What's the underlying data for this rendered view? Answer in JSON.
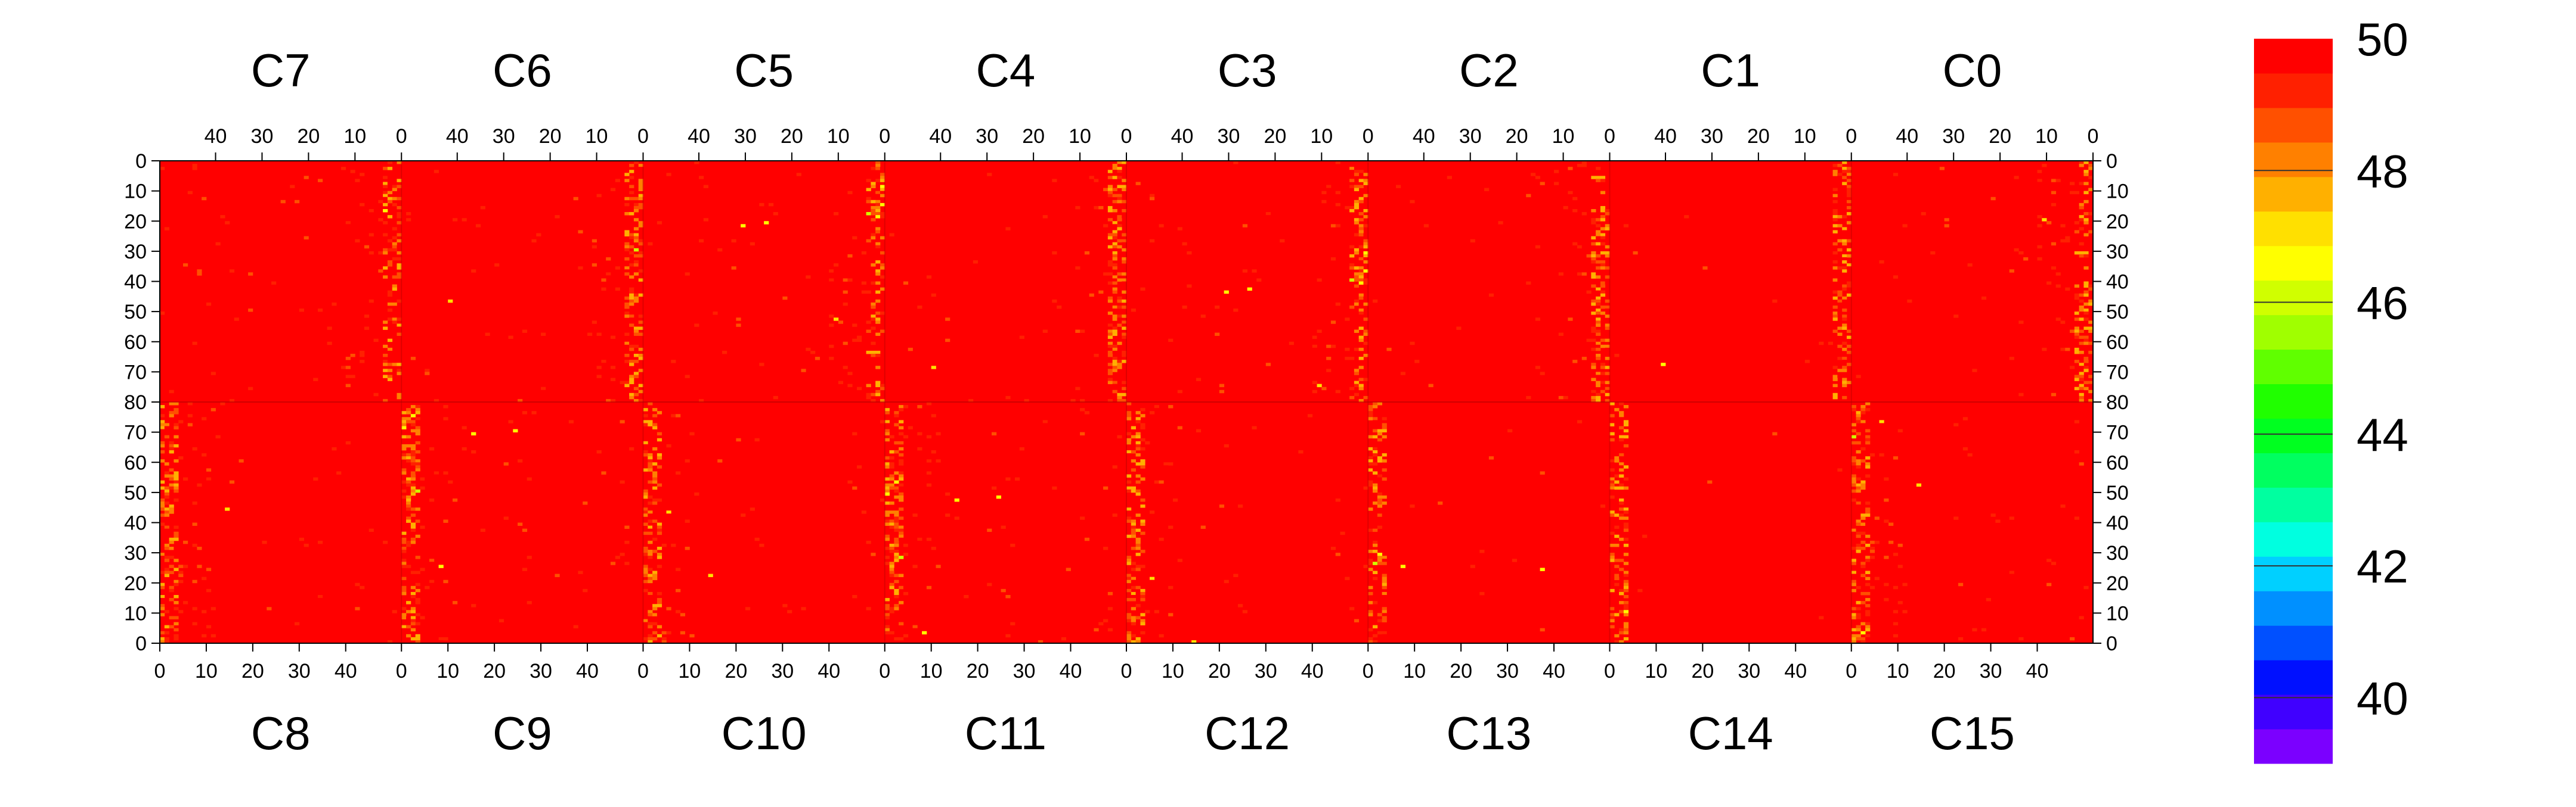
{
  "chart_data": {
    "type": "heatmap",
    "layout": "two rows of 8 chip panels; top row rows 0-80 downward with reversed x, bottom row rows 0-80 upward",
    "top_panels": [
      "C7",
      "C6",
      "C5",
      "C4",
      "C3",
      "C2",
      "C1",
      "C0"
    ],
    "bottom_panels": [
      "C8",
      "C9",
      "C10",
      "C11",
      "C12",
      "C13",
      "C14",
      "C15"
    ],
    "x_range": [
      0,
      52
    ],
    "x_ticks": [
      0,
      10,
      20,
      30,
      40
    ],
    "y_range": [
      0,
      80
    ],
    "y_ticks": [
      0,
      10,
      20,
      30,
      40,
      50,
      60,
      70,
      80
    ],
    "z_range": [
      39,
      50
    ],
    "colorbar_ticks": [
      40,
      42,
      44,
      46,
      48,
      50
    ],
    "colorbar_colors": [
      "#7b00ff",
      "#4000ff",
      "#0010ff",
      "#0050ff",
      "#0090ff",
      "#00d0ff",
      "#00ffe0",
      "#00ffa0",
      "#00ff60",
      "#00ff20",
      "#20ff00",
      "#60ff00",
      "#a0ff00",
      "#d0ff00",
      "#ffff00",
      "#ffe000",
      "#ffb000",
      "#ff8000",
      "#ff5000",
      "#ff2000",
      "#ff0000"
    ],
    "background_color": "#ff0000",
    "value_description": "most pixels near 49-50 (red), with yellow/orange columns near panel edges",
    "hot_columns": {
      "top": [
        [
          0,
          1,
          1,
          0,
          1,
          0,
          1,
          0
        ],
        [
          1,
          0,
          1,
          1,
          1,
          0,
          0,
          1
        ]
      ],
      "note": "panel-edge columns with lower values"
    }
  }
}
